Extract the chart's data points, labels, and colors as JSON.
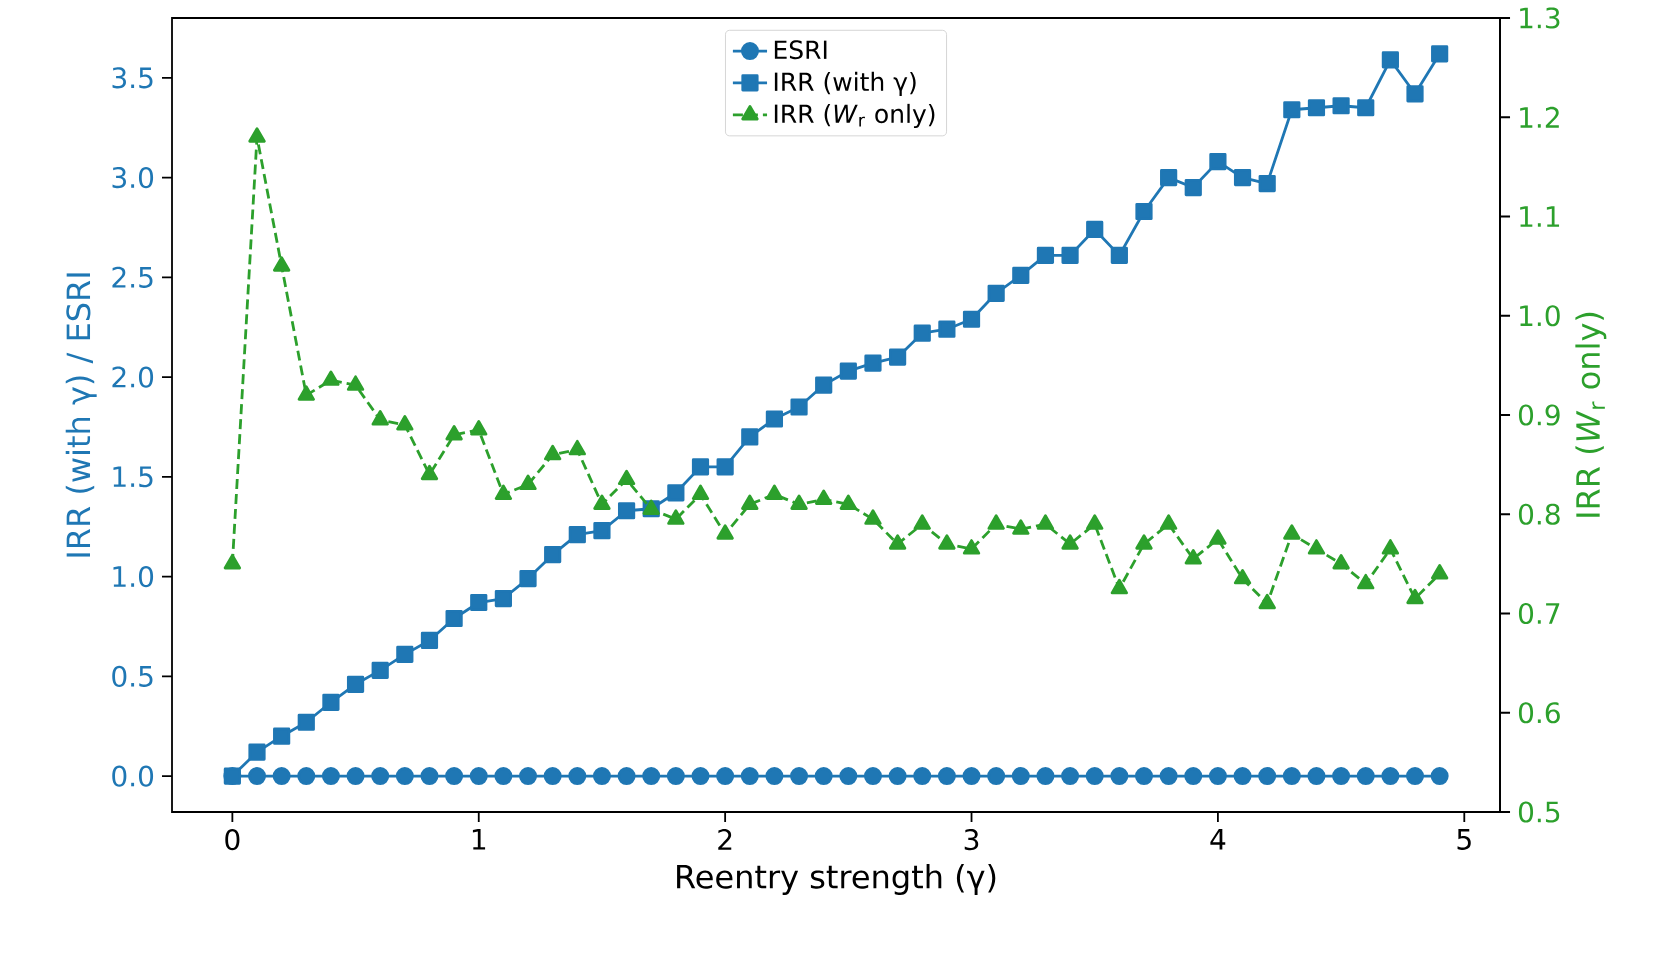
{
  "chart_data": {
    "type": "line",
    "xlabel": "Reentry strength (γ)",
    "ylabel": "IRR (with γ) / ESRI",
    "y2label": "IRR (*W*$_{r}$ only)",
    "x": [
      0,
      0.1,
      0.2,
      0.3,
      0.4,
      0.5,
      0.6,
      0.7,
      0.8,
      0.9,
      1.0,
      1.1,
      1.2,
      1.3,
      1.4,
      1.5,
      1.6,
      1.7,
      1.8,
      1.9,
      2.0,
      2.1,
      2.2,
      2.3,
      2.4,
      2.5,
      2.6,
      2.7,
      2.8,
      2.9,
      3.0,
      3.1,
      3.2,
      3.3,
      3.4,
      3.5,
      3.6,
      3.7,
      3.8,
      3.9,
      4.0,
      4.1,
      4.2,
      4.3,
      4.4,
      4.5,
      4.6,
      4.7,
      4.8,
      4.9
    ],
    "series": [
      {
        "name": "ESRI",
        "color": "#1f77b4",
        "marker": "circle",
        "line_style": "solid",
        "values": [
          0,
          0,
          0,
          0,
          0,
          0,
          0,
          0,
          0,
          0,
          0,
          0,
          0,
          0,
          0,
          0,
          0,
          0,
          0,
          0,
          0,
          0,
          0,
          0,
          0,
          0,
          0,
          0,
          0,
          0,
          0,
          0,
          0,
          0,
          0,
          0,
          0,
          0,
          0,
          0,
          0,
          0,
          0,
          0,
          0,
          0,
          0,
          0,
          0,
          0
        ]
      },
      {
        "name": "IRR  (with γ)",
        "color": "#1f77b4",
        "marker": "square",
        "line_style": "solid",
        "values": [
          0,
          0.12,
          0.2,
          0.27,
          0.37,
          0.46,
          0.53,
          0.61,
          0.68,
          0.79,
          0.87,
          0.89,
          0.99,
          1.11,
          1.21,
          1.23,
          1.33,
          1.34,
          1.42,
          1.55,
          1.55,
          1.7,
          1.79,
          1.85,
          1.96,
          2.03,
          2.07,
          2.1,
          2.22,
          2.24,
          2.29,
          2.42,
          2.51,
          2.61,
          2.61,
          2.74,
          2.61,
          2.83,
          3.0,
          2.95,
          3.08,
          3.0,
          2.97,
          3.34,
          3.35,
          3.36,
          3.35,
          3.59,
          3.42,
          3.62
        ]
      },
      {
        "name": "IRR (*W*$_{r}$ only)",
        "color": "#2ca02c",
        "marker": "triangle",
        "line_style": "dashed",
        "axis": "y2",
        "values": [
          0.75,
          1.18,
          1.05,
          0.92,
          0.935,
          0.93,
          0.895,
          0.89,
          0.84,
          0.88,
          0.885,
          0.82,
          0.83,
          0.86,
          0.865,
          0.81,
          0.835,
          0.805,
          0.795,
          0.82,
          0.78,
          0.81,
          0.82,
          0.81,
          0.815,
          0.81,
          0.795,
          0.77,
          0.79,
          0.77,
          0.765,
          0.79,
          0.785,
          0.79,
          0.77,
          0.79,
          0.725,
          0.77,
          0.79,
          0.755,
          0.775,
          0.735,
          0.71,
          0.78,
          0.765,
          0.75,
          0.73,
          0.765,
          0.715,
          0.74
        ]
      }
    ],
    "xlim": [
      -0.245,
      5.145
    ],
    "xticks": [
      0,
      1,
      2,
      3,
      4,
      5
    ],
    "ylim": [
      -0.18,
      3.8
    ],
    "yticks": [
      {
        "value": 0,
        "label": "0.0"
      },
      {
        "value": 0.5,
        "label": "0.5"
      },
      {
        "value": 1,
        "label": "1.0"
      },
      {
        "value": 1.5,
        "label": "1.5"
      },
      {
        "value": 2,
        "label": "2.0"
      },
      {
        "value": 2.5,
        "label": "2.5"
      },
      {
        "value": 3,
        "label": "3.0"
      },
      {
        "value": 3.5,
        "label": "3.5"
      }
    ],
    "y2lim": [
      0.5,
      1.3
    ],
    "y2ticks": [
      0.5,
      0.6,
      0.7,
      0.8,
      0.9,
      {
        "value": 1,
        "label": "1.0"
      },
      1.1,
      1.2,
      1.3
    ],
    "grid": false,
    "legend": "top"
  }
}
